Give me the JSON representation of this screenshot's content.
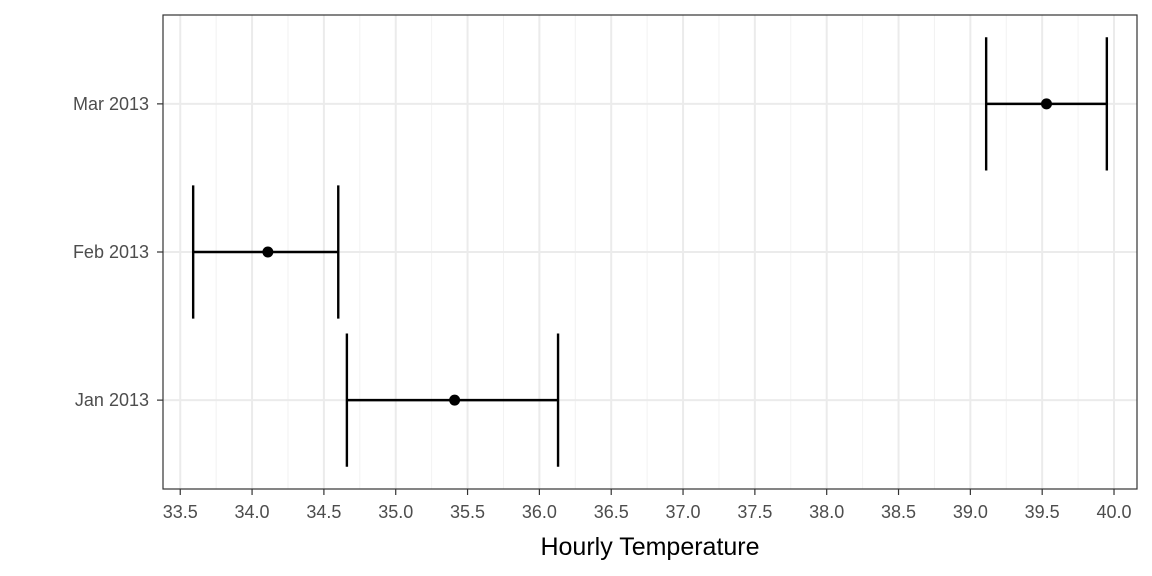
{
  "chart_data": {
    "type": "errorbar",
    "xlabel": "Hourly Temperature",
    "ylabel": "",
    "xlim": [
      33.38,
      40.16
    ],
    "x_ticks": [
      33.5,
      34.0,
      34.5,
      35.0,
      35.5,
      36.0,
      36.5,
      37.0,
      37.5,
      38.0,
      38.5,
      39.0,
      39.5,
      40.0
    ],
    "x_tick_labels": [
      "33.5",
      "34.0",
      "34.5",
      "35.0",
      "35.5",
      "36.0",
      "36.5",
      "37.0",
      "37.5",
      "38.0",
      "38.5",
      "39.0",
      "39.5",
      "40.0"
    ],
    "categories": [
      "Jan 2013",
      "Feb 2013",
      "Mar 2013"
    ],
    "points": [
      {
        "category": "Jan 2013",
        "value": 35.41,
        "lower": 34.66,
        "upper": 36.13
      },
      {
        "category": "Feb 2013",
        "value": 34.11,
        "lower": 33.59,
        "upper": 34.6
      },
      {
        "category": "Mar 2013",
        "value": 39.53,
        "lower": 39.11,
        "upper": 39.95
      }
    ],
    "grid": true,
    "legend": "none",
    "colors": {
      "background": "#ffffff",
      "panel_border": "#333333",
      "grid_major": "#ebebeb",
      "grid_minor": "#f2f2f2",
      "mark": "#000000",
      "tick_text": "#4d4d4d"
    }
  }
}
